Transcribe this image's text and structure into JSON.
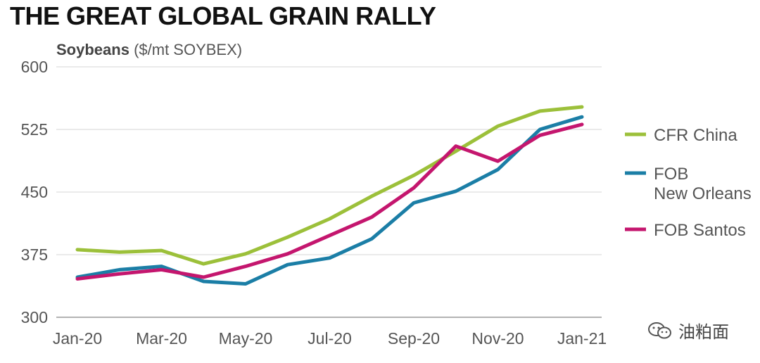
{
  "title": "THE GREAT GLOBAL GRAIN RALLY",
  "subtitle_bold": "Soybeans",
  "subtitle_rest": "($/mt SOYBEX)",
  "watermark": "油粕面",
  "chart_data": {
    "type": "line",
    "ylabel": "Soybeans ($/mt SOYBEX)",
    "ylim": [
      300,
      600
    ],
    "yticks": [
      "600",
      "525",
      "450",
      "375",
      "300"
    ],
    "ytick_values": [
      600,
      525,
      450,
      375,
      300
    ],
    "x": [
      "Jan-20",
      "Feb-20",
      "Mar-20",
      "Apr-20",
      "May-20",
      "Jun-20",
      "Jul-20",
      "Aug-20",
      "Sep-20",
      "Oct-20",
      "Nov-20",
      "Dec-20",
      "Jan-21"
    ],
    "xticks": [
      "Jan-20",
      "Mar-20",
      "May-20",
      "Jul-20",
      "Sep-20",
      "Nov-20",
      "Jan-21"
    ],
    "grid": "horizontal",
    "legend_position": "right",
    "series": [
      {
        "name": "CFR China",
        "color": "#9cc03a",
        "values": [
          381,
          378,
          380,
          364,
          376,
          396,
          418,
          445,
          470,
          499,
          529,
          547,
          552
        ]
      },
      {
        "name": "FOB New Orleans",
        "color": "#1b7ea6",
        "values": [
          348,
          357,
          361,
          343,
          340,
          363,
          371,
          394,
          437,
          451,
          477,
          525,
          540
        ]
      },
      {
        "name": "FOB Santos",
        "color": "#c4166e",
        "values": [
          346,
          352,
          357,
          348,
          361,
          376,
          398,
          420,
          455,
          505,
          487,
          518,
          531
        ]
      }
    ]
  }
}
